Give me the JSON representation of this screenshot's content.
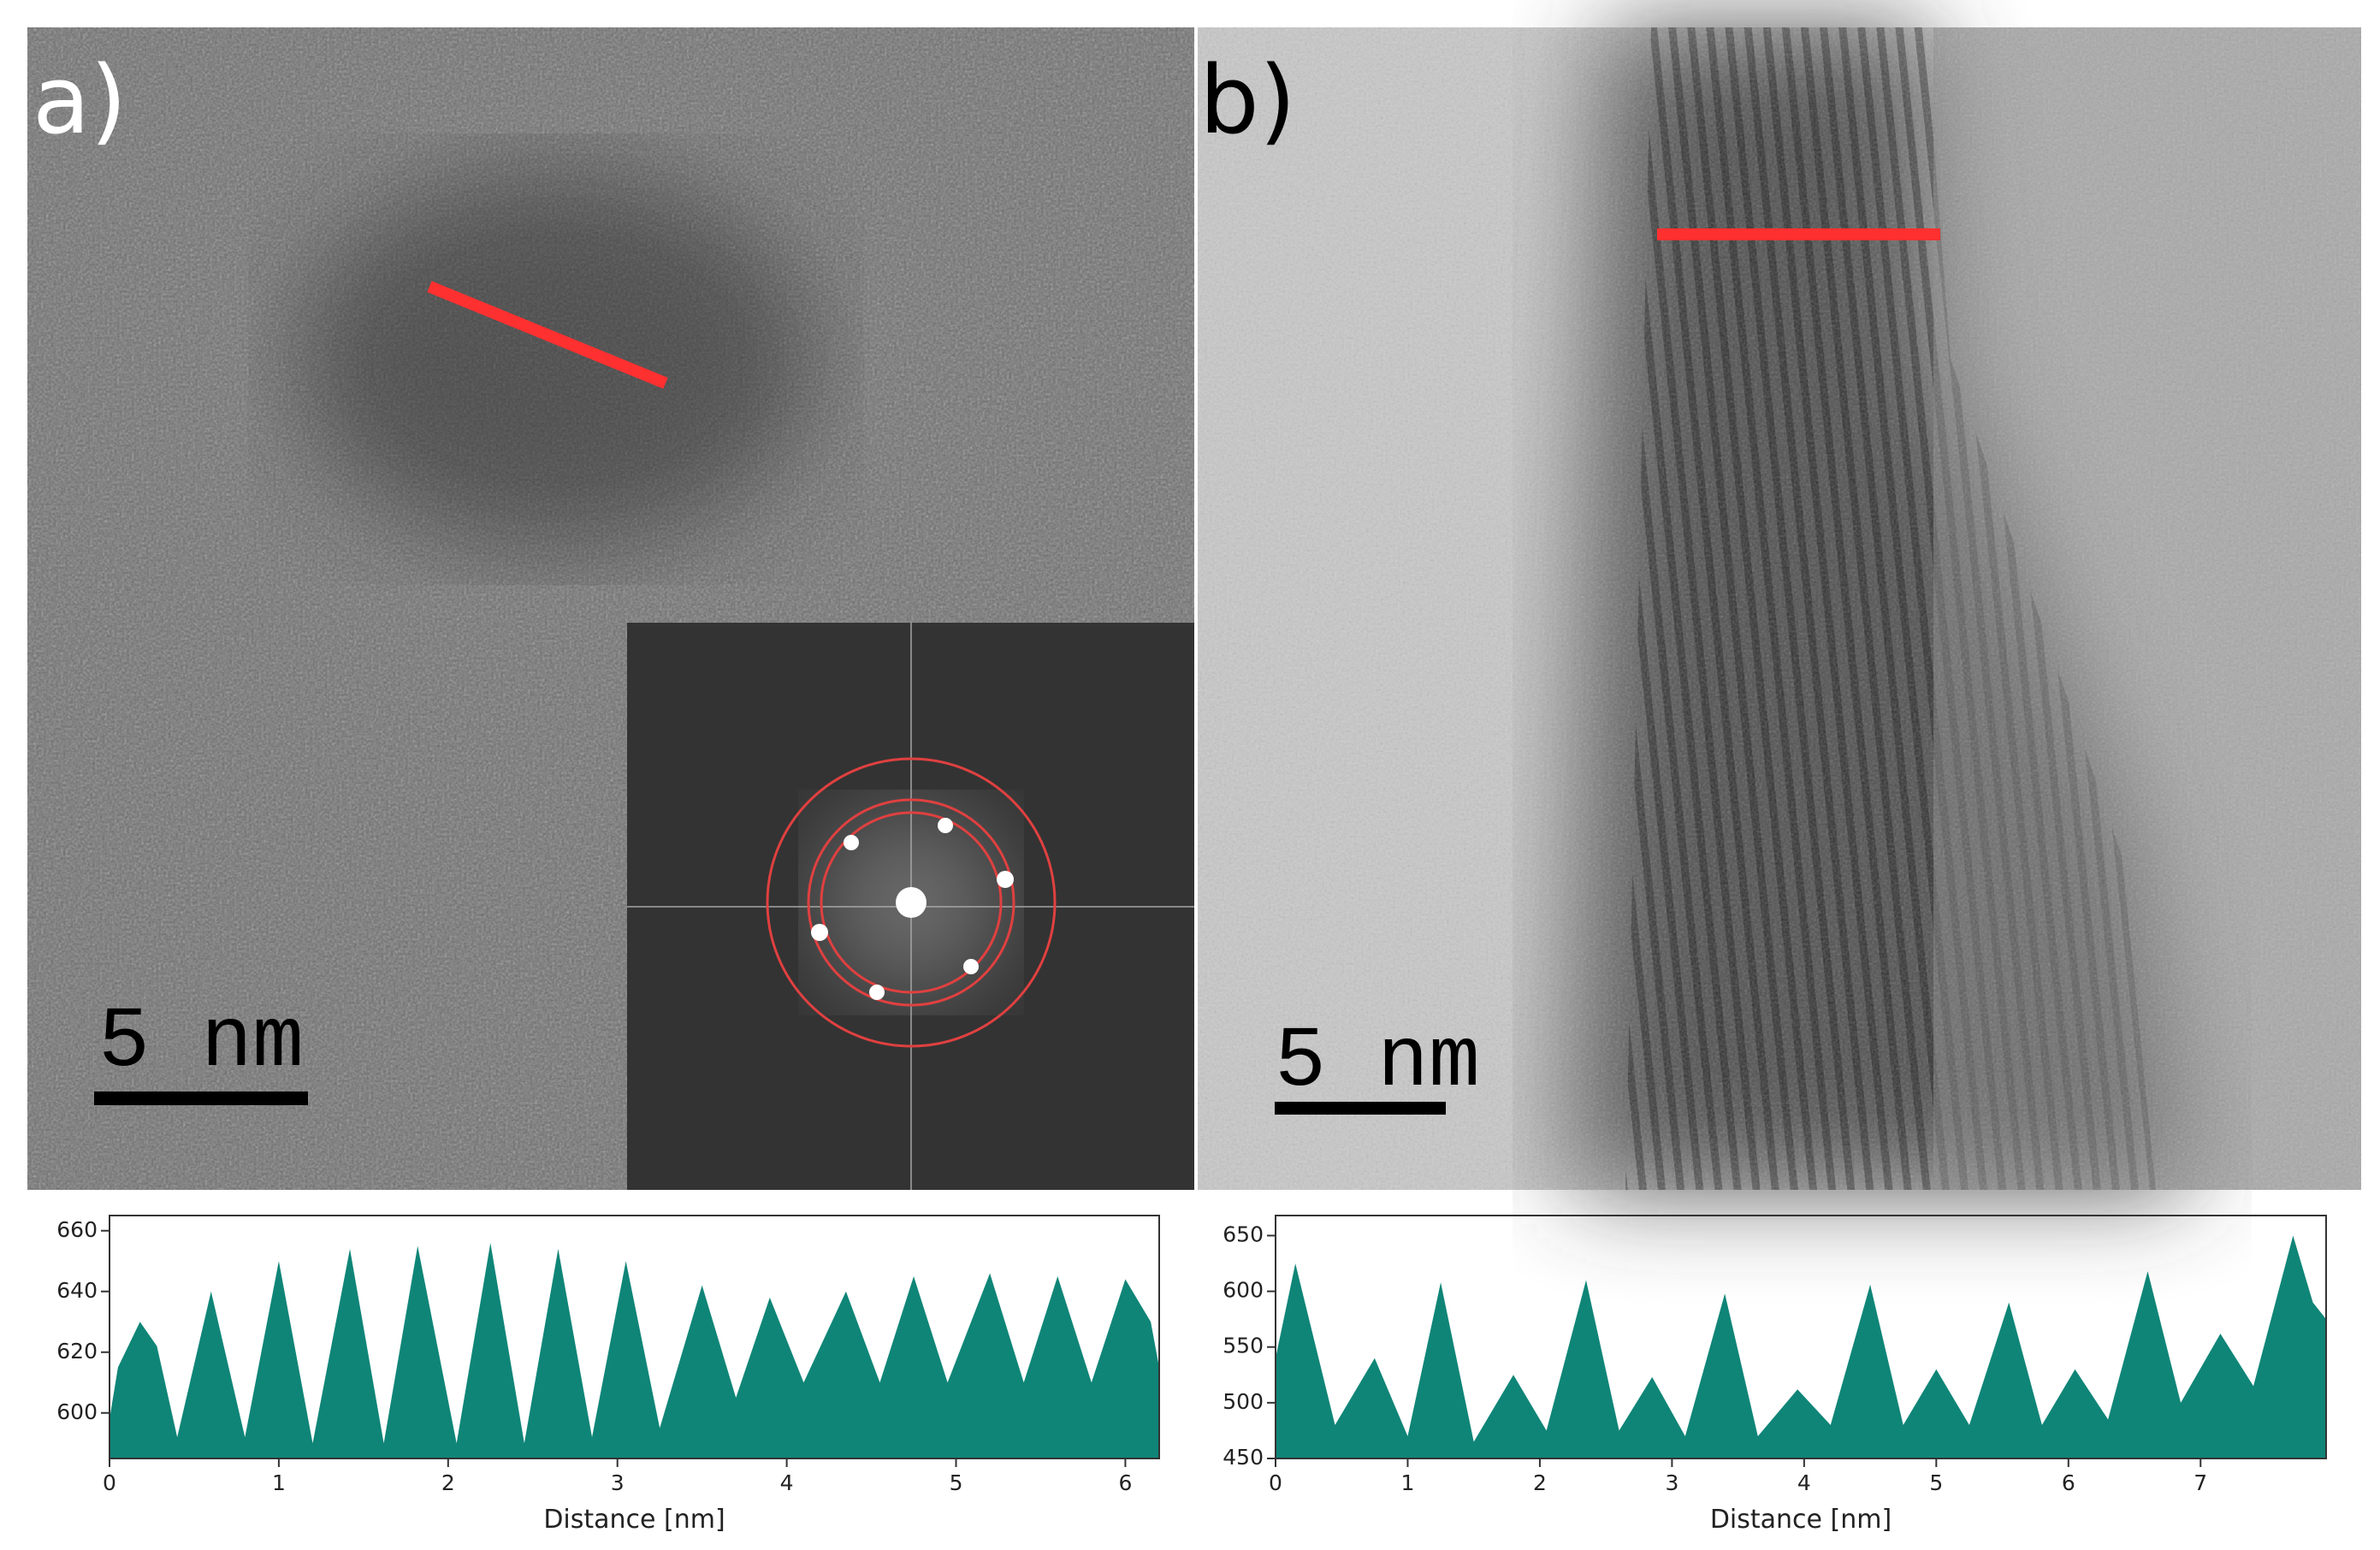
{
  "panels": [
    {
      "label": "a)",
      "scale_bar": "5 nm"
    },
    {
      "label": "b)",
      "scale_bar": "5 nm"
    }
  ],
  "chart_data": [
    {
      "type": "area",
      "x_label": "Distance [nm]",
      "color": "#0f8577",
      "x": [
        0,
        0.05,
        0.18,
        0.28,
        0.4,
        0.6,
        0.8,
        1.0,
        1.2,
        1.42,
        1.62,
        1.82,
        2.05,
        2.25,
        2.45,
        2.65,
        2.85,
        3.05,
        3.25,
        3.5,
        3.7,
        3.9,
        4.1,
        4.35,
        4.55,
        4.75,
        4.95,
        5.2,
        5.4,
        5.6,
        5.8,
        6.0,
        6.15,
        6.2
      ],
      "values": [
        598,
        615,
        630,
        622,
        592,
        640,
        592,
        650,
        590,
        654,
        590,
        655,
        590,
        656,
        590,
        654,
        592,
        650,
        595,
        642,
        605,
        638,
        610,
        640,
        610,
        645,
        610,
        646,
        610,
        645,
        610,
        644,
        630,
        615
      ],
      "xlim": [
        0,
        6.2
      ],
      "ylim": [
        585,
        665
      ],
      "xticks": [
        0,
        1,
        2,
        3,
        4,
        5,
        6
      ],
      "yticks": [
        600,
        620,
        640,
        660
      ]
    },
    {
      "type": "area",
      "x_label": "Distance [nm]",
      "color": "#0f8577",
      "x": [
        0,
        0.15,
        0.45,
        0.75,
        1.0,
        1.25,
        1.5,
        1.8,
        2.05,
        2.35,
        2.6,
        2.85,
        3.1,
        3.4,
        3.65,
        3.95,
        4.2,
        4.5,
        4.75,
        5.0,
        5.25,
        5.55,
        5.8,
        6.05,
        6.3,
        6.6,
        6.85,
        7.15,
        7.4,
        7.7,
        7.85,
        7.95
      ],
      "values": [
        540,
        625,
        480,
        540,
        470,
        608,
        465,
        525,
        475,
        610,
        475,
        523,
        470,
        598,
        470,
        512,
        480,
        606,
        480,
        530,
        480,
        590,
        480,
        530,
        485,
        618,
        500,
        562,
        515,
        650,
        590,
        575
      ],
      "xlim": [
        0,
        7.95
      ],
      "ylim": [
        450,
        668
      ],
      "xticks": [
        0,
        1,
        2,
        3,
        4,
        5,
        6,
        7
      ],
      "yticks": [
        450,
        500,
        550,
        600,
        650
      ]
    }
  ]
}
